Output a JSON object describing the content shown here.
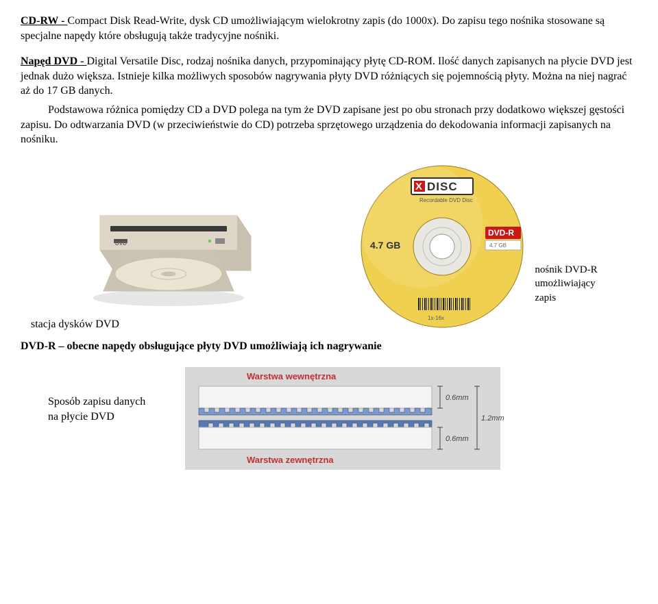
{
  "para1": {
    "cdrw_label": "CD-RW - ",
    "cdrw_expand": "Compact Disk Read-Write, dysk CD umożliwiającym wielokrotny zapis (do 1000x). Do zapisu tego nośnika stosowane są specjalne napędy które obsługują także tradycyjne nośniki."
  },
  "para2": {
    "dvd_label": "Napęd DVD - ",
    "dvd_text": "Digital Versatile Disc, rodzaj nośnika danych, przypominający płytę CD-ROM. Ilość danych zapisanych na płycie DVD jest jednak dużo większa. Istnieje kilka możliwych sposobów nagrywania płyty DVD różniących się pojemnością płyty. Można na niej nagrać aż do 17 GB danych."
  },
  "para3": "Podstawowa różnica pomiędzy CD a DVD polega na tym że DVD zapisane jest po obu stronach przy dodatkowo większej gęstości zapisu. Do odtwarzania DVD (w przeciwieństwie do CD) potrzeba sprzętowego urządzenia do dekodowania informacji zapisanych na nośniku.",
  "captions": {
    "drive": "stacja dysków DVD",
    "disc_l1": "nośnik DVD-R",
    "disc_l2": "umożliwiający",
    "disc_l3": " zapis"
  },
  "dvdr_line": "DVD-R – obecne napędy obsługujące płyty DVD umożliwiają ich nagrywanie",
  "layers": {
    "caption_l1": "Sposób zapisu danych",
    "caption_l2": "  na  płycie DVD",
    "top_label": "Warstwa wewnętrzna",
    "bottom_label": "Warstwa zewnętrzna",
    "dim1": "0.6mm",
    "dim2": "1.2mm",
    "dim3": "0.6mm"
  },
  "disc": {
    "brand": "XDISC",
    "sub": "Recordable DVD Disc",
    "cap": "4.7 GB",
    "side": "DVD-R",
    "colors": {
      "disc_fill": "#f0d050",
      "disc_stroke": "#a07820",
      "hub_fill": "#e8e8e0",
      "brand_red": "#c81818",
      "logo_frame": "#303030"
    }
  },
  "layer_colors": {
    "bg": "#d8d8d8",
    "outer": "#f4f4f4",
    "outer_stroke": "#b0b0b0",
    "layer_top": "#7a9acc",
    "layer_bot": "#5878b0",
    "pit": "#203860",
    "label_red": "#c03030",
    "dim_text": "#404040"
  },
  "drive_colors": {
    "shell": "#ded6c6",
    "shell_shade": "#c8c0b0",
    "slot": "#383838",
    "tray": "#cac2b2",
    "disc": "#eae4d4",
    "disc_ring": "#c8c0a8",
    "bg": "#ffffff",
    "shadow": "#c0c0c0"
  }
}
